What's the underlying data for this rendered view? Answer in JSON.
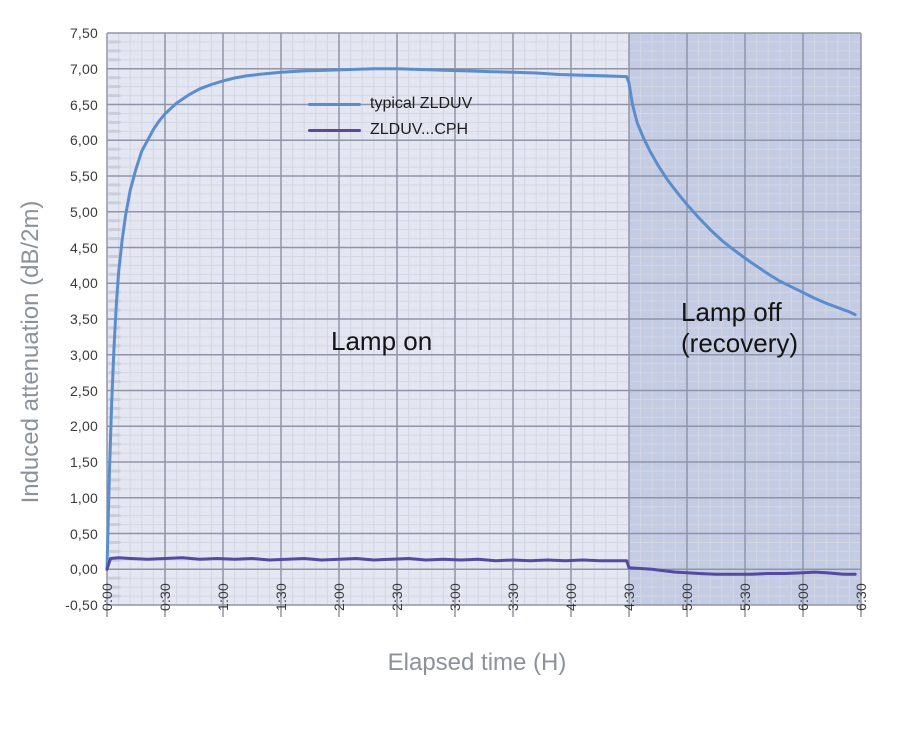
{
  "colors": {
    "background": "#ffffff",
    "grid_major": "#8f95a6",
    "grid_minor": "#d3d6e3",
    "axis_minor_dash": "#c9cdda",
    "tick_text": "#3a3a3a",
    "axis_title_text": "#8d919b",
    "region_label_text": "#141414",
    "lamp_on_region": "#e4e6f2",
    "lamp_off_region": "#c4cce4",
    "series_typical": "#5b8dcd",
    "series_cph": "#5549a2"
  },
  "chart_data": {
    "type": "line",
    "title": "",
    "xlabel": "Elapsed time (H)",
    "ylabel": "Induced attenuation (dB/2m)",
    "xlim": [
      0,
      6.5
    ],
    "ylim": [
      -0.5,
      7.5
    ],
    "x_minor_step": 0.1,
    "y_minor_step": 0.125,
    "grid": "on",
    "legend_position": "upper-left-inside",
    "x_ticks": [
      {
        "value": 0.0,
        "label": "0:00"
      },
      {
        "value": 0.5,
        "label": "0:30"
      },
      {
        "value": 1.0,
        "label": "1:00"
      },
      {
        "value": 1.5,
        "label": "1:30"
      },
      {
        "value": 2.0,
        "label": "2:00"
      },
      {
        "value": 2.5,
        "label": "2:30"
      },
      {
        "value": 3.0,
        "label": "3:00"
      },
      {
        "value": 3.5,
        "label": "3:30"
      },
      {
        "value": 4.0,
        "label": "4:00"
      },
      {
        "value": 4.5,
        "label": "4:30"
      },
      {
        "value": 5.0,
        "label": "5:00"
      },
      {
        "value": 5.5,
        "label": "5:30"
      },
      {
        "value": 6.0,
        "label": "6:00"
      },
      {
        "value": 6.5,
        "label": "6:30"
      }
    ],
    "y_ticks": [
      {
        "value": 7.5,
        "label": "7,50"
      },
      {
        "value": 7.0,
        "label": "7,00"
      },
      {
        "value": 6.5,
        "label": "6,50"
      },
      {
        "value": 6.0,
        "label": "6,00"
      },
      {
        "value": 5.5,
        "label": "5,50"
      },
      {
        "value": 5.0,
        "label": "5,00"
      },
      {
        "value": 4.5,
        "label": "4,50"
      },
      {
        "value": 4.0,
        "label": "4,00"
      },
      {
        "value": 3.5,
        "label": "3,50"
      },
      {
        "value": 3.0,
        "label": "3,00"
      },
      {
        "value": 2.5,
        "label": "2,50"
      },
      {
        "value": 2.0,
        "label": "2,00"
      },
      {
        "value": 1.5,
        "label": "1,50"
      },
      {
        "value": 1.0,
        "label": "1,00"
      },
      {
        "value": 0.5,
        "label": "0,50"
      },
      {
        "value": 0.0,
        "label": "0,00"
      },
      {
        "value": -0.5,
        "label": "-0,50"
      }
    ],
    "regions": [
      {
        "name": "lamp-on",
        "label": "Lamp on",
        "x_start": 0,
        "x_end": 4.5,
        "color": "#e4e6f2"
      },
      {
        "name": "lamp-off-recovery",
        "label": "Lamp off (recovery)",
        "label_lines": [
          "Lamp off",
          "(recovery)"
        ],
        "x_start": 4.5,
        "x_end": 6.5,
        "color": "#c4cce4"
      }
    ],
    "series": [
      {
        "name": "typical ZLDUV",
        "color": "#5b8dcd",
        "points": [
          [
            0.0,
            0.0
          ],
          [
            0.02,
            1.3
          ],
          [
            0.04,
            2.3
          ],
          [
            0.06,
            3.1
          ],
          [
            0.08,
            3.7
          ],
          [
            0.1,
            4.15
          ],
          [
            0.13,
            4.6
          ],
          [
            0.16,
            4.95
          ],
          [
            0.2,
            5.3
          ],
          [
            0.25,
            5.6
          ],
          [
            0.3,
            5.85
          ],
          [
            0.35,
            6.0
          ],
          [
            0.4,
            6.15
          ],
          [
            0.45,
            6.27
          ],
          [
            0.5,
            6.37
          ],
          [
            0.6,
            6.52
          ],
          [
            0.7,
            6.63
          ],
          [
            0.8,
            6.72
          ],
          [
            0.9,
            6.78
          ],
          [
            1.0,
            6.83
          ],
          [
            1.1,
            6.87
          ],
          [
            1.2,
            6.9
          ],
          [
            1.3,
            6.92
          ],
          [
            1.5,
            6.95
          ],
          [
            1.7,
            6.97
          ],
          [
            1.9,
            6.98
          ],
          [
            2.1,
            6.99
          ],
          [
            2.3,
            7.0
          ],
          [
            2.5,
            7.0
          ],
          [
            2.7,
            6.99
          ],
          [
            2.9,
            6.98
          ],
          [
            3.1,
            6.97
          ],
          [
            3.3,
            6.96
          ],
          [
            3.5,
            6.95
          ],
          [
            3.7,
            6.94
          ],
          [
            3.9,
            6.92
          ],
          [
            4.1,
            6.91
          ],
          [
            4.3,
            6.9
          ],
          [
            4.48,
            6.89
          ],
          [
            4.5,
            6.8
          ],
          [
            4.53,
            6.5
          ],
          [
            4.57,
            6.25
          ],
          [
            4.62,
            6.05
          ],
          [
            4.68,
            5.85
          ],
          [
            4.75,
            5.65
          ],
          [
            4.83,
            5.45
          ],
          [
            4.92,
            5.26
          ],
          [
            5.0,
            5.1
          ],
          [
            5.1,
            4.92
          ],
          [
            5.2,
            4.75
          ],
          [
            5.3,
            4.6
          ],
          [
            5.4,
            4.47
          ],
          [
            5.5,
            4.35
          ],
          [
            5.6,
            4.24
          ],
          [
            5.7,
            4.13
          ],
          [
            5.8,
            4.03
          ],
          [
            5.9,
            3.95
          ],
          [
            6.0,
            3.87
          ],
          [
            6.1,
            3.79
          ],
          [
            6.2,
            3.72
          ],
          [
            6.3,
            3.66
          ],
          [
            6.4,
            3.6
          ],
          [
            6.45,
            3.56
          ]
        ]
      },
      {
        "name": "ZLDUV...CPH",
        "color": "#5549a2",
        "points": [
          [
            0.0,
            0.0
          ],
          [
            0.03,
            0.15
          ],
          [
            0.1,
            0.16
          ],
          [
            0.2,
            0.15
          ],
          [
            0.35,
            0.14
          ],
          [
            0.5,
            0.15
          ],
          [
            0.65,
            0.16
          ],
          [
            0.8,
            0.14
          ],
          [
            0.95,
            0.15
          ],
          [
            1.1,
            0.14
          ],
          [
            1.25,
            0.15
          ],
          [
            1.4,
            0.13
          ],
          [
            1.55,
            0.14
          ],
          [
            1.7,
            0.15
          ],
          [
            1.85,
            0.13
          ],
          [
            2.0,
            0.14
          ],
          [
            2.15,
            0.15
          ],
          [
            2.3,
            0.13
          ],
          [
            2.45,
            0.14
          ],
          [
            2.6,
            0.15
          ],
          [
            2.75,
            0.13
          ],
          [
            2.9,
            0.14
          ],
          [
            3.05,
            0.13
          ],
          [
            3.2,
            0.14
          ],
          [
            3.35,
            0.12
          ],
          [
            3.5,
            0.13
          ],
          [
            3.65,
            0.12
          ],
          [
            3.8,
            0.13
          ],
          [
            3.95,
            0.12
          ],
          [
            4.1,
            0.13
          ],
          [
            4.25,
            0.12
          ],
          [
            4.4,
            0.12
          ],
          [
            4.48,
            0.12
          ],
          [
            4.5,
            0.02
          ],
          [
            4.6,
            0.01
          ],
          [
            4.7,
            0.0
          ],
          [
            4.8,
            -0.02
          ],
          [
            4.9,
            -0.04
          ],
          [
            5.0,
            -0.05
          ],
          [
            5.1,
            -0.06
          ],
          [
            5.25,
            -0.07
          ],
          [
            5.4,
            -0.07
          ],
          [
            5.55,
            -0.07
          ],
          [
            5.7,
            -0.06
          ],
          [
            5.85,
            -0.06
          ],
          [
            6.0,
            -0.05
          ],
          [
            6.1,
            -0.04
          ],
          [
            6.2,
            -0.05
          ],
          [
            6.35,
            -0.07
          ],
          [
            6.45,
            -0.07
          ]
        ]
      }
    ]
  }
}
